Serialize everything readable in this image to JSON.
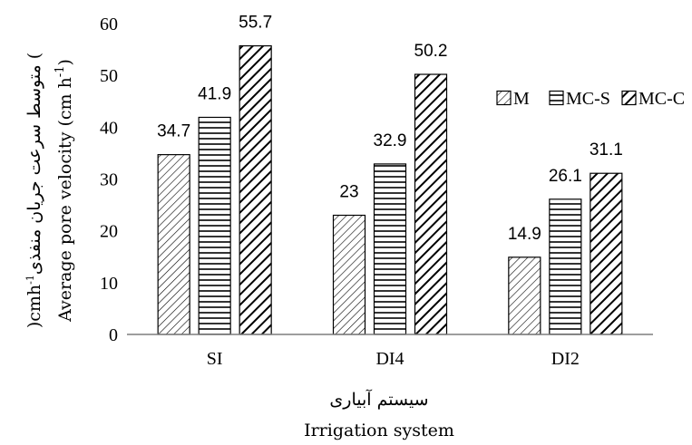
{
  "chart_data": {
    "type": "bar",
    "categories": [
      "SI",
      "DI4",
      "DI2"
    ],
    "series": [
      {
        "name": "M",
        "values": [
          34.7,
          23,
          14.9
        ],
        "labels": [
          "34.7",
          "23",
          "14.9"
        ],
        "pattern": "diag-dense"
      },
      {
        "name": "MC-S",
        "values": [
          41.9,
          32.9,
          26.1
        ],
        "labels": [
          "41.9",
          "32.9",
          "26.1"
        ],
        "pattern": "horizontal"
      },
      {
        "name": "MC-C",
        "values": [
          55.7,
          50.2,
          31.1
        ],
        "labels": [
          "55.7",
          "50.2",
          "31.1"
        ],
        "pattern": "diag-wide"
      }
    ],
    "ylim": [
      0,
      60
    ],
    "yticks": [
      "0",
      "10",
      "20",
      "30",
      "40",
      "50",
      "60"
    ],
    "ylabel": "Average pore velocity (cm h",
    "ylabel_sup": "-1",
    "ylabel_end": ")",
    "ylabel_fa": "متوسط سرعت جریان منفذی (",
    "ylabel_fa_unit": "cmh",
    "ylabel_fa_sup": "-1",
    "ylabel_fa_end": ")",
    "xlabel_fa": "سیستم آبیاری",
    "xlabel": "Irrigation system",
    "legend_position": "top-right",
    "grid": false,
    "colors": {
      "stroke": "#000000",
      "fill": "#ffffff",
      "axis": "#7f7f7f"
    }
  }
}
